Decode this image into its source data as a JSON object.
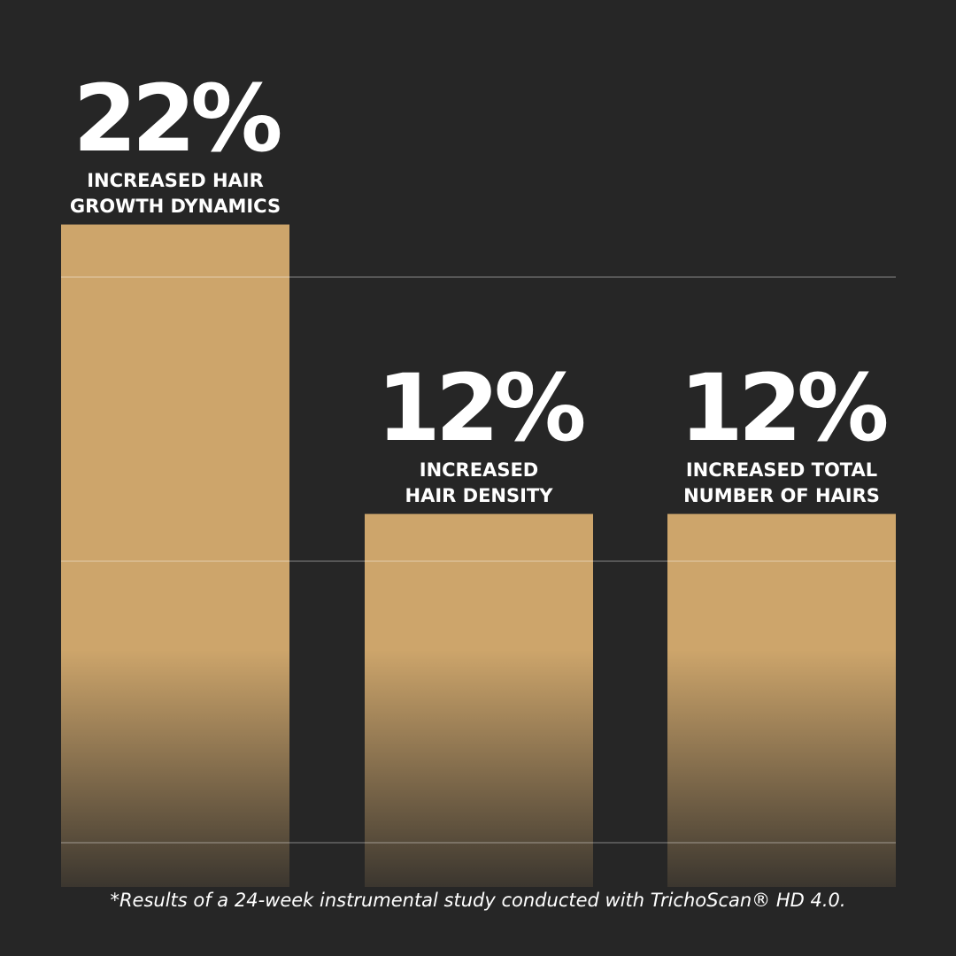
{
  "chart_data": {
    "type": "bar",
    "categories": [
      "INCREASED HAIR GROWTH DYNAMICS",
      "INCREASED HAIR DENSITY",
      "INCREASED TOTAL NUMBER OF HAIRS"
    ],
    "values": [
      22,
      12,
      12
    ],
    "data_labels": [
      "22%",
      "12%",
      "12%"
    ],
    "label_lines": [
      [
        "INCREASED HAIR",
        "GROWTH DYNAMICS"
      ],
      [
        "INCREASED",
        "HAIR DENSITY"
      ],
      [
        "INCREASED TOTAL",
        "NUMBER OF HAIRS"
      ]
    ],
    "grid": true,
    "bar_color": "#CDA56B",
    "background": "#262626",
    "footnote": "*Results of a 24-week instrumental study conducted with TrichoScan® HD 4.0."
  }
}
